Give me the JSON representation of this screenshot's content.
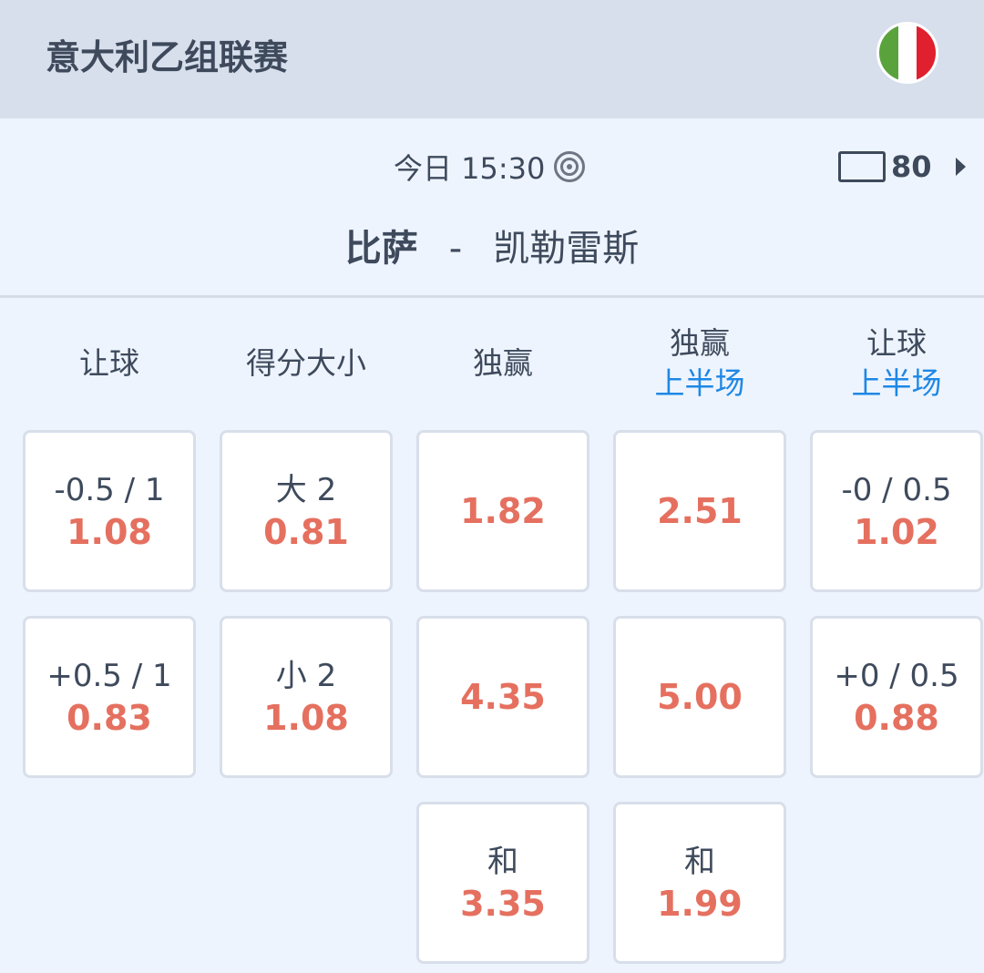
{
  "header": {
    "league": "意大利乙组联赛",
    "flag_colors": [
      "#5aa33c",
      "#ffffff",
      "#e0202e"
    ]
  },
  "match": {
    "time": "今日 15:30",
    "live_icon": "target-icon",
    "tv_icon": "tv-icon",
    "tv_count": "80",
    "home": "比萨",
    "separator": "-",
    "away": "凯勒雷斯"
  },
  "columns": [
    {
      "title": "让球",
      "sub": ""
    },
    {
      "title": "得分大小",
      "sub": ""
    },
    {
      "title": "独赢",
      "sub": ""
    },
    {
      "title": "独赢",
      "sub": "上半场"
    },
    {
      "title": "让球",
      "sub": "上半场"
    }
  ],
  "cards": [
    [
      {
        "line": "-0.5 / 1",
        "odd": "1.08"
      },
      {
        "line": "+0.5 / 1",
        "odd": "0.83"
      }
    ],
    [
      {
        "line": "大 2",
        "odd": "0.81"
      },
      {
        "line": "小 2",
        "odd": "1.08"
      }
    ],
    [
      {
        "line": "",
        "odd": "1.82"
      },
      {
        "line": "",
        "odd": "4.35"
      },
      {
        "line": "和",
        "odd": "3.35"
      }
    ],
    [
      {
        "line": "",
        "odd": "2.51"
      },
      {
        "line": "",
        "odd": "5.00"
      },
      {
        "line": "和",
        "odd": "1.99"
      }
    ],
    [
      {
        "line": "-0 / 0.5",
        "odd": "1.02"
      },
      {
        "line": "+0 / 0.5",
        "odd": "0.88"
      }
    ]
  ],
  "colors": {
    "odds": "#e5705f",
    "accent": "#1e88e5",
    "header_bg": "#d7dfec",
    "page_bg": "#eef4fd"
  }
}
